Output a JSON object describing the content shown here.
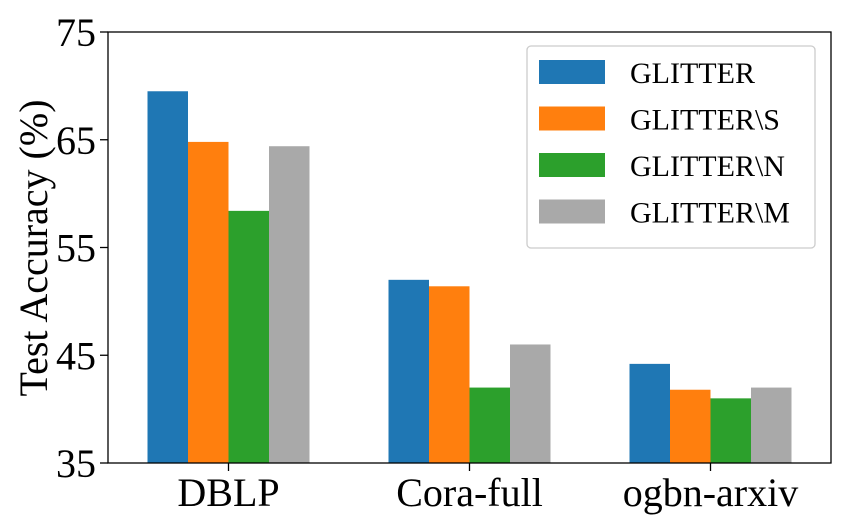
{
  "chart_data": {
    "type": "bar",
    "title": "",
    "xlabel": "",
    "ylabel": "Test Accuracy (%)",
    "ylim": [
      35,
      75
    ],
    "yticks": [
      "35",
      "45",
      "55",
      "65",
      "75"
    ],
    "categories": [
      "DBLP",
      "Cora-full",
      "ogbn-arxiv"
    ],
    "legend_position": "top-right",
    "grid": false,
    "series": [
      {
        "name": "GLITTER",
        "color": "#1f77b4",
        "values": [
          69.5,
          52.0,
          44.2
        ]
      },
      {
        "name": "GLITTER\\S",
        "color": "#ff7f0e",
        "values": [
          64.8,
          51.4,
          41.8
        ]
      },
      {
        "name": "GLITTER\\N",
        "color": "#2ca02c",
        "values": [
          58.4,
          42.0,
          41.0
        ]
      },
      {
        "name": "GLITTER\\M",
        "color": "#a9a9a9",
        "values": [
          64.4,
          46.0,
          42.0
        ]
      }
    ]
  }
}
